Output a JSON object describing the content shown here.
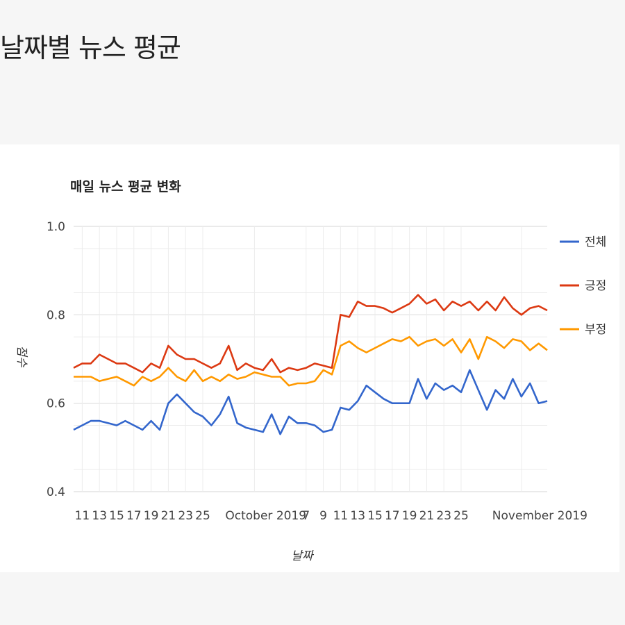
{
  "page": {
    "title": "날짜별 뉴스 평균"
  },
  "chart_data": {
    "type": "line",
    "title": "매일 뉴스 평균 변화",
    "xlabel": "날짜",
    "ylabel": "점수",
    "ylim": [
      0.4,
      1.0
    ],
    "yticks": [
      1.0,
      0.8,
      0.6,
      0.4
    ],
    "xlim": [
      "2019-09-10",
      "2019-11-04"
    ],
    "xtick_labels": [
      {
        "x": "2019-09-11",
        "label": "11"
      },
      {
        "x": "2019-09-13",
        "label": "13"
      },
      {
        "x": "2019-09-15",
        "label": "15"
      },
      {
        "x": "2019-09-17",
        "label": "17"
      },
      {
        "x": "2019-09-19",
        "label": "19"
      },
      {
        "x": "2019-09-21",
        "label": "21"
      },
      {
        "x": "2019-09-23",
        "label": "23"
      },
      {
        "x": "2019-09-25",
        "label": "25"
      },
      {
        "x": "2019-10-01",
        "label": "October 2019"
      },
      {
        "x": "2019-10-07",
        "label": "7"
      },
      {
        "x": "2019-10-09",
        "label": "9"
      },
      {
        "x": "2019-10-11",
        "label": "11"
      },
      {
        "x": "2019-10-13",
        "label": "13"
      },
      {
        "x": "2019-10-15",
        "label": "15"
      },
      {
        "x": "2019-10-17",
        "label": "17"
      },
      {
        "x": "2019-10-19",
        "label": "19"
      },
      {
        "x": "2019-10-21",
        "label": "21"
      },
      {
        "x": "2019-10-23",
        "label": "23"
      },
      {
        "x": "2019-10-25",
        "label": "25"
      },
      {
        "x": "2019-11-01",
        "label": "November 2019"
      }
    ],
    "legend_position": "right",
    "grid": true,
    "series": [
      {
        "name": "전체",
        "color": "#3366cc",
        "points": [
          [
            "2019-09-10",
            0.54
          ],
          [
            "2019-09-11",
            0.55
          ],
          [
            "2019-09-12",
            0.56
          ],
          [
            "2019-09-13",
            0.56
          ],
          [
            "2019-09-14",
            0.555
          ],
          [
            "2019-09-15",
            0.55
          ],
          [
            "2019-09-16",
            0.56
          ],
          [
            "2019-09-17",
            0.55
          ],
          [
            "2019-09-18",
            0.54
          ],
          [
            "2019-09-19",
            0.56
          ],
          [
            "2019-09-20",
            0.54
          ],
          [
            "2019-09-21",
            0.6
          ],
          [
            "2019-09-22",
            0.62
          ],
          [
            "2019-09-23",
            0.6
          ],
          [
            "2019-09-24",
            0.58
          ],
          [
            "2019-09-25",
            0.57
          ],
          [
            "2019-09-26",
            0.55
          ],
          [
            "2019-09-27",
            0.575
          ],
          [
            "2019-09-28",
            0.615
          ],
          [
            "2019-09-29",
            0.555
          ],
          [
            "2019-09-30",
            0.545
          ],
          [
            "2019-10-01",
            0.54
          ],
          [
            "2019-10-02",
            0.535
          ],
          [
            "2019-10-03",
            0.575
          ],
          [
            "2019-10-04",
            0.53
          ],
          [
            "2019-10-05",
            0.57
          ],
          [
            "2019-10-06",
            0.555
          ],
          [
            "2019-10-07",
            0.555
          ],
          [
            "2019-10-08",
            0.55
          ],
          [
            "2019-10-09",
            0.535
          ],
          [
            "2019-10-10",
            0.54
          ],
          [
            "2019-10-11",
            0.59
          ],
          [
            "2019-10-12",
            0.585
          ],
          [
            "2019-10-13",
            0.605
          ],
          [
            "2019-10-14",
            0.64
          ],
          [
            "2019-10-15",
            0.625
          ],
          [
            "2019-10-16",
            0.61
          ],
          [
            "2019-10-17",
            0.6
          ],
          [
            "2019-10-18",
            0.6
          ],
          [
            "2019-10-19",
            0.6
          ],
          [
            "2019-10-20",
            0.655
          ],
          [
            "2019-10-21",
            0.61
          ],
          [
            "2019-10-22",
            0.645
          ],
          [
            "2019-10-23",
            0.63
          ],
          [
            "2019-10-24",
            0.64
          ],
          [
            "2019-10-25",
            0.625
          ],
          [
            "2019-10-26",
            0.675
          ],
          [
            "2019-10-27",
            0.63
          ],
          [
            "2019-10-28",
            0.585
          ],
          [
            "2019-10-29",
            0.63
          ],
          [
            "2019-10-30",
            0.61
          ],
          [
            "2019-10-31",
            0.655
          ],
          [
            "2019-11-01",
            0.615
          ],
          [
            "2019-11-02",
            0.645
          ],
          [
            "2019-11-03",
            0.6
          ],
          [
            "2019-11-04",
            0.605
          ]
        ]
      },
      {
        "name": "긍정",
        "color": "#dc3912",
        "points": [
          [
            "2019-09-10",
            0.68
          ],
          [
            "2019-09-11",
            0.69
          ],
          [
            "2019-09-12",
            0.69
          ],
          [
            "2019-09-13",
            0.71
          ],
          [
            "2019-09-14",
            0.7
          ],
          [
            "2019-09-15",
            0.69
          ],
          [
            "2019-09-16",
            0.69
          ],
          [
            "2019-09-17",
            0.68
          ],
          [
            "2019-09-18",
            0.67
          ],
          [
            "2019-09-19",
            0.69
          ],
          [
            "2019-09-20",
            0.68
          ],
          [
            "2019-09-21",
            0.73
          ],
          [
            "2019-09-22",
            0.71
          ],
          [
            "2019-09-23",
            0.7
          ],
          [
            "2019-09-24",
            0.7
          ],
          [
            "2019-09-25",
            0.69
          ],
          [
            "2019-09-26",
            0.68
          ],
          [
            "2019-09-27",
            0.69
          ],
          [
            "2019-09-28",
            0.73
          ],
          [
            "2019-09-29",
            0.675
          ],
          [
            "2019-09-30",
            0.69
          ],
          [
            "2019-10-01",
            0.68
          ],
          [
            "2019-10-02",
            0.675
          ],
          [
            "2019-10-03",
            0.7
          ],
          [
            "2019-10-04",
            0.67
          ],
          [
            "2019-10-05",
            0.68
          ],
          [
            "2019-10-06",
            0.675
          ],
          [
            "2019-10-07",
            0.68
          ],
          [
            "2019-10-08",
            0.69
          ],
          [
            "2019-10-09",
            0.685
          ],
          [
            "2019-10-10",
            0.68
          ],
          [
            "2019-10-11",
            0.8
          ],
          [
            "2019-10-12",
            0.795
          ],
          [
            "2019-10-13",
            0.83
          ],
          [
            "2019-10-14",
            0.82
          ],
          [
            "2019-10-15",
            0.82
          ],
          [
            "2019-10-16",
            0.815
          ],
          [
            "2019-10-17",
            0.805
          ],
          [
            "2019-10-18",
            0.815
          ],
          [
            "2019-10-19",
            0.825
          ],
          [
            "2019-10-20",
            0.845
          ],
          [
            "2019-10-21",
            0.825
          ],
          [
            "2019-10-22",
            0.835
          ],
          [
            "2019-10-23",
            0.81
          ],
          [
            "2019-10-24",
            0.83
          ],
          [
            "2019-10-25",
            0.82
          ],
          [
            "2019-10-26",
            0.83
          ],
          [
            "2019-10-27",
            0.81
          ],
          [
            "2019-10-28",
            0.83
          ],
          [
            "2019-10-29",
            0.81
          ],
          [
            "2019-10-30",
            0.84
          ],
          [
            "2019-10-31",
            0.815
          ],
          [
            "2019-11-01",
            0.8
          ],
          [
            "2019-11-02",
            0.815
          ],
          [
            "2019-11-03",
            0.82
          ],
          [
            "2019-11-04",
            0.81
          ]
        ]
      },
      {
        "name": "부정",
        "color": "#ff9900",
        "points": [
          [
            "2019-09-10",
            0.66
          ],
          [
            "2019-09-11",
            0.66
          ],
          [
            "2019-09-12",
            0.66
          ],
          [
            "2019-09-13",
            0.65
          ],
          [
            "2019-09-14",
            0.655
          ],
          [
            "2019-09-15",
            0.66
          ],
          [
            "2019-09-16",
            0.65
          ],
          [
            "2019-09-17",
            0.64
          ],
          [
            "2019-09-18",
            0.66
          ],
          [
            "2019-09-19",
            0.65
          ],
          [
            "2019-09-20",
            0.66
          ],
          [
            "2019-09-21",
            0.68
          ],
          [
            "2019-09-22",
            0.66
          ],
          [
            "2019-09-23",
            0.65
          ],
          [
            "2019-09-24",
            0.675
          ],
          [
            "2019-09-25",
            0.65
          ],
          [
            "2019-09-26",
            0.66
          ],
          [
            "2019-09-27",
            0.65
          ],
          [
            "2019-09-28",
            0.665
          ],
          [
            "2019-09-29",
            0.655
          ],
          [
            "2019-09-30",
            0.66
          ],
          [
            "2019-10-01",
            0.67
          ],
          [
            "2019-10-02",
            0.665
          ],
          [
            "2019-10-03",
            0.66
          ],
          [
            "2019-10-04",
            0.66
          ],
          [
            "2019-10-05",
            0.64
          ],
          [
            "2019-10-06",
            0.645
          ],
          [
            "2019-10-07",
            0.645
          ],
          [
            "2019-10-08",
            0.65
          ],
          [
            "2019-10-09",
            0.675
          ],
          [
            "2019-10-10",
            0.665
          ],
          [
            "2019-10-11",
            0.73
          ],
          [
            "2019-10-12",
            0.74
          ],
          [
            "2019-10-13",
            0.725
          ],
          [
            "2019-10-14",
            0.715
          ],
          [
            "2019-10-15",
            0.725
          ],
          [
            "2019-10-16",
            0.735
          ],
          [
            "2019-10-17",
            0.745
          ],
          [
            "2019-10-18",
            0.74
          ],
          [
            "2019-10-19",
            0.75
          ],
          [
            "2019-10-20",
            0.73
          ],
          [
            "2019-10-21",
            0.74
          ],
          [
            "2019-10-22",
            0.745
          ],
          [
            "2019-10-23",
            0.73
          ],
          [
            "2019-10-24",
            0.745
          ],
          [
            "2019-10-25",
            0.715
          ],
          [
            "2019-10-26",
            0.745
          ],
          [
            "2019-10-27",
            0.7
          ],
          [
            "2019-10-28",
            0.75
          ],
          [
            "2019-10-29",
            0.74
          ],
          [
            "2019-10-30",
            0.725
          ],
          [
            "2019-10-31",
            0.745
          ],
          [
            "2019-11-01",
            0.74
          ],
          [
            "2019-11-02",
            0.72
          ],
          [
            "2019-11-03",
            0.735
          ],
          [
            "2019-11-04",
            0.72
          ]
        ]
      }
    ]
  }
}
